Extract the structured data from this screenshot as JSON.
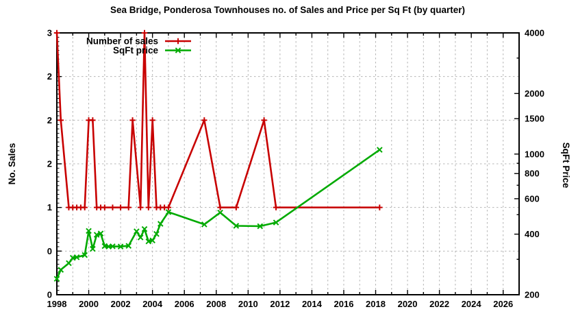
{
  "chart_data": {
    "type": "line",
    "title": "Sea Bridge, Ponderosa Townhouses no. of Sales and Price per Sq Ft (by quarter)",
    "x_axis": {
      "range": [
        1998,
        2027
      ],
      "major_tick_step": 2,
      "minor_tick_step": 1,
      "tick_labels": [
        "1998",
        "2000",
        "2002",
        "2004",
        "2006",
        "2008",
        "2010",
        "2012",
        "2014",
        "2016",
        "2018",
        "2020",
        "2022",
        "2024",
        "2026"
      ]
    },
    "y_axis_left": {
      "label": "No. Sales",
      "range": [
        0,
        3
      ],
      "minor_step": 0.05,
      "ticks": [
        {
          "v": 0.0,
          "label": "0"
        },
        {
          "v": 0.5,
          "label": "0"
        },
        {
          "v": 1.0,
          "label": "1"
        },
        {
          "v": 1.5,
          "label": "2"
        },
        {
          "v": 2.0,
          "label": "2"
        },
        {
          "v": 2.5,
          "label": "2"
        },
        {
          "v": 3.0,
          "label": "3"
        }
      ]
    },
    "y_axis_right": {
      "label": "SqFt Price",
      "range": [
        200,
        4000
      ],
      "scale": "log",
      "ticks": [
        {
          "v": 200,
          "label": "200"
        },
        {
          "v": 300,
          "label": ""
        },
        {
          "v": 400,
          "label": "400"
        },
        {
          "v": 500,
          "label": ""
        },
        {
          "v": 600,
          "label": "600"
        },
        {
          "v": 700,
          "label": ""
        },
        {
          "v": 800,
          "label": "800"
        },
        {
          "v": 900,
          "label": ""
        },
        {
          "v": 1000,
          "label": "1000"
        },
        {
          "v": 1500,
          "label": "1500"
        },
        {
          "v": 2000,
          "label": "2000"
        },
        {
          "v": 3000,
          "label": ""
        },
        {
          "v": 4000,
          "label": "4000"
        }
      ]
    },
    "grid": {
      "color": "#b4b4b4",
      "style": "dashed"
    },
    "legend": {
      "position": "top-left-inside",
      "entries": [
        "Number of sales",
        "SqFt price"
      ]
    },
    "series": [
      {
        "name": "Number of sales",
        "axis": "left",
        "color": "#c80000",
        "marker": "plus",
        "points": [
          [
            1998.0,
            3
          ],
          [
            1998.25,
            2
          ],
          [
            1998.75,
            1
          ],
          [
            1999.0,
            1
          ],
          [
            1999.25,
            1
          ],
          [
            1999.5,
            1
          ],
          [
            1999.75,
            1
          ],
          [
            2000.0,
            2
          ],
          [
            2000.25,
            2
          ],
          [
            2000.5,
            1
          ],
          [
            2000.75,
            1
          ],
          [
            2001.0,
            1
          ],
          [
            2001.5,
            1
          ],
          [
            2002.0,
            1
          ],
          [
            2002.5,
            1
          ],
          [
            2002.75,
            2
          ],
          [
            2003.25,
            1
          ],
          [
            2003.5,
            3
          ],
          [
            2003.75,
            1
          ],
          [
            2004.0,
            2
          ],
          [
            2004.25,
            1
          ],
          [
            2004.5,
            1
          ],
          [
            2004.75,
            1
          ],
          [
            2005.0,
            1
          ],
          [
            2007.25,
            2
          ],
          [
            2008.25,
            1
          ],
          [
            2009.25,
            1
          ],
          [
            2011.0,
            2
          ],
          [
            2011.75,
            1
          ],
          [
            2018.25,
            1
          ]
        ]
      },
      {
        "name": "SqFt price",
        "axis": "right",
        "color": "#00aa00",
        "marker": "x",
        "points": [
          [
            1998.0,
            240
          ],
          [
            1998.25,
            266
          ],
          [
            1998.75,
            287
          ],
          [
            1999.0,
            305
          ],
          [
            1999.25,
            307
          ],
          [
            1999.75,
            315
          ],
          [
            2000.0,
            415
          ],
          [
            2000.25,
            338
          ],
          [
            2000.5,
            397
          ],
          [
            2000.75,
            403
          ],
          [
            2001.0,
            349
          ],
          [
            2001.25,
            347
          ],
          [
            2001.5,
            348
          ],
          [
            2002.0,
            347
          ],
          [
            2002.5,
            350
          ],
          [
            2003.0,
            413
          ],
          [
            2003.25,
            385
          ],
          [
            2003.5,
            424
          ],
          [
            2003.75,
            368
          ],
          [
            2004.0,
            372
          ],
          [
            2004.25,
            401
          ],
          [
            2004.5,
            450
          ],
          [
            2005.0,
            515
          ],
          [
            2007.25,
            447
          ],
          [
            2008.25,
            512
          ],
          [
            2009.25,
            440
          ],
          [
            2010.75,
            438
          ],
          [
            2011.75,
            457
          ],
          [
            2018.25,
            1050
          ]
        ]
      }
    ]
  }
}
